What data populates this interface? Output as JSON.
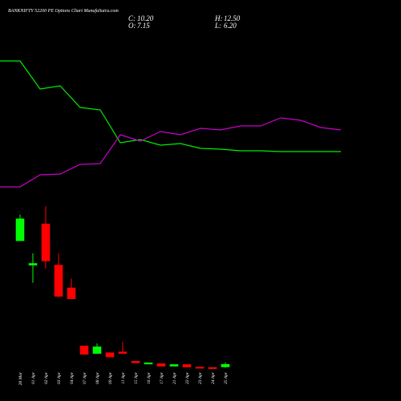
{
  "chart_data": [
    {
      "type": "line",
      "ylim": [
        0,
        250
      ],
      "series": [
        {
          "color": "#00ee00",
          "values": [
            174,
            174,
            139,
            143,
            116,
            113,
            72,
            76,
            69,
            71,
            65,
            64,
            62,
            62,
            61,
            61,
            61,
            61
          ]
        },
        {
          "color": "#cc00cc",
          "values": [
            17,
            17,
            32,
            33,
            45,
            46,
            82,
            74,
            86,
            82,
            90,
            88,
            93,
            93,
            103,
            100,
            91,
            88
          ]
        }
      ]
    },
    {
      "type": "candlestick",
      "title": "BANKNIFTY 52200 PE Options Chart MunafaSutra.com",
      "summary": [
        {
          "label": "C:",
          "text": "10.20"
        },
        {
          "label": "O:",
          "text": "7.15"
        },
        {
          "label": "H:",
          "text": "12.50"
        },
        {
          "label": "L:",
          "text": "6.20"
        }
      ],
      "categories": [
        "28 Mar",
        "01 Apr",
        "02 Apr",
        "03 Apr",
        "04 Apr",
        "07 Apr",
        "08 Apr",
        "09 Apr",
        "11 Apr",
        "15 Apr",
        "16 Apr",
        "17 Apr",
        "21 Apr",
        "22 Apr",
        "23 Apr",
        "24 Apr",
        "25 Apr"
      ],
      "open": [
        157,
        128,
        177,
        128,
        101,
        32,
        23,
        24,
        25,
        14,
        11,
        11,
        8,
        10,
        7,
        6.5,
        7.15
      ],
      "high": [
        188,
        142,
        198,
        142,
        112,
        32,
        35,
        24,
        37,
        14,
        12,
        11,
        10,
        10,
        7,
        6.5,
        12.5
      ],
      "low": [
        157,
        107,
        124,
        90,
        88,
        22,
        23,
        19,
        23,
        12,
        11,
        8,
        8,
        7,
        6,
        5.5,
        6.2
      ],
      "close": [
        183,
        130,
        133,
        91,
        88,
        22,
        31,
        19,
        23,
        12,
        12,
        8,
        10,
        7,
        6,
        5.5,
        10.2
      ],
      "up_color": "#00ff00",
      "down_color": "#ff0000",
      "ylim": [
        0,
        200
      ]
    }
  ]
}
